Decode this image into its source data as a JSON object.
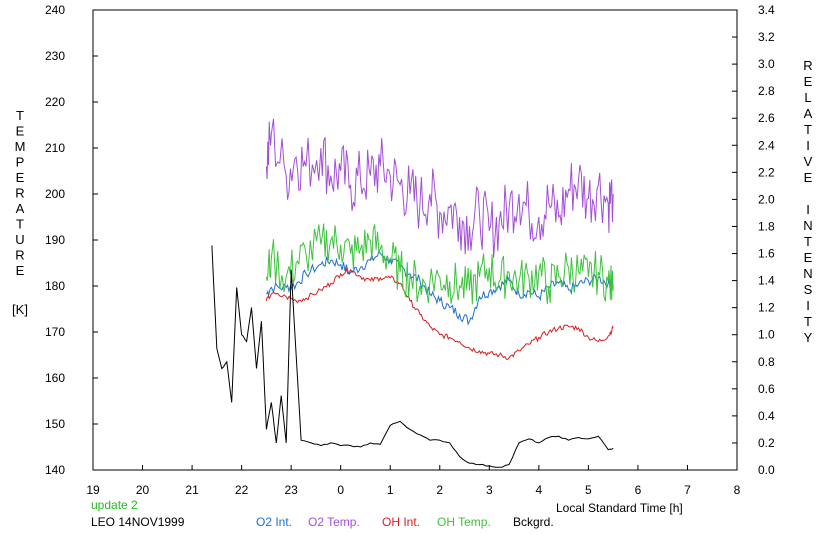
{
  "chart_data": {
    "type": "line",
    "left_axis": {
      "title_letters": [
        "T",
        "E",
        "M",
        "P",
        "E",
        "R",
        "A",
        "T",
        "U",
        "R",
        "E"
      ],
      "unit": "[K]",
      "range": [
        140,
        240
      ],
      "ticks": [
        "140",
        "150",
        "160",
        "170",
        "180",
        "190",
        "200",
        "210",
        "220",
        "230",
        "240"
      ]
    },
    "right_axis": {
      "title_word1": [
        "R",
        "E",
        "L",
        "A",
        "T",
        "I",
        "V",
        "E"
      ],
      "title_word2": [
        "I",
        "N",
        "T",
        "E",
        "N",
        "S",
        "I",
        "T",
        "Y"
      ],
      "range": [
        0.0,
        3.4
      ],
      "ticks": [
        "0.0",
        "0.2",
        "0.4",
        "0.6",
        "0.8",
        "1.0",
        "1.2",
        "1.4",
        "1.6",
        "1.8",
        "2.0",
        "2.2",
        "2.4",
        "2.6",
        "2.8",
        "3.0",
        "3.2",
        "3.4"
      ]
    },
    "x_axis": {
      "label": "Local Standard Time [h]",
      "tick_labels": [
        "19",
        "20",
        "21",
        "22",
        "23",
        "0",
        "1",
        "2",
        "3",
        "4",
        "5",
        "6",
        "7",
        "8"
      ],
      "range_hours_since_19": [
        0,
        13
      ]
    },
    "update_text": "update 2",
    "station_text": "LEO 14NOV1999",
    "colors": {
      "o2_int": "#1f6fd0",
      "o2_temp": "#a24fd6",
      "oh_int": "#d81f1f",
      "oh_temp": "#3cc23c",
      "bckgrd": "#000000",
      "update": "#22bb22"
    },
    "series": [
      {
        "name": "O2 Int.",
        "axis": "right",
        "x": [
          22.5,
          22.6,
          22.9,
          23.1,
          23.3,
          23.6,
          23.8,
          24.0,
          24.2,
          24.4,
          24.6,
          24.8,
          25.0,
          25.2,
          25.4,
          25.6,
          25.8,
          26.0,
          26.2,
          26.4,
          26.6,
          26.8,
          27.0,
          27.2,
          27.4,
          27.6,
          27.8,
          28.0,
          28.2,
          28.4,
          28.6,
          28.8,
          29.0,
          29.2,
          29.4,
          29.5
        ],
        "values": [
          1.3,
          1.35,
          1.35,
          1.37,
          1.45,
          1.52,
          1.55,
          1.52,
          1.46,
          1.5,
          1.55,
          1.6,
          1.55,
          1.5,
          1.45,
          1.4,
          1.3,
          1.25,
          1.2,
          1.15,
          1.1,
          1.28,
          1.32,
          1.36,
          1.4,
          1.3,
          1.32,
          1.28,
          1.35,
          1.38,
          1.33,
          1.37,
          1.4,
          1.42,
          1.38,
          1.35
        ]
      },
      {
        "name": "O2 Temp.",
        "axis": "left",
        "x": [
          22.5,
          22.6,
          22.9,
          23.1,
          23.3,
          23.6,
          23.8,
          24.0,
          24.2,
          24.4,
          24.6,
          24.8,
          25.0,
          25.2,
          25.4,
          25.6,
          25.8,
          26.0,
          26.2,
          26.4,
          26.6,
          26.8,
          27.0,
          27.2,
          27.4,
          27.6,
          27.8,
          28.0,
          28.2,
          28.4,
          28.6,
          28.8,
          29.0,
          29.2,
          29.4,
          29.5
        ],
        "values": [
          206,
          213,
          204,
          208,
          206,
          210,
          204,
          205,
          202,
          203,
          204,
          206,
          204,
          202,
          200,
          198,
          200,
          196,
          197,
          195,
          193,
          196,
          192,
          194,
          197,
          200,
          196,
          195,
          198,
          195,
          201,
          203,
          199,
          202,
          198,
          200
        ]
      },
      {
        "name": "OH Int.",
        "axis": "right",
        "x": [
          22.5,
          22.6,
          22.9,
          23.1,
          23.3,
          23.6,
          23.8,
          24.0,
          24.2,
          24.4,
          24.6,
          24.8,
          25.0,
          25.2,
          25.4,
          25.6,
          25.8,
          26.0,
          26.2,
          26.4,
          26.6,
          26.8,
          27.0,
          27.2,
          27.4,
          27.6,
          27.8,
          28.0,
          28.2,
          28.4,
          28.6,
          28.8,
          29.0,
          29.2,
          29.4,
          29.5
        ],
        "values": [
          1.25,
          1.3,
          1.28,
          1.25,
          1.27,
          1.33,
          1.38,
          1.45,
          1.48,
          1.43,
          1.4,
          1.42,
          1.42,
          1.38,
          1.25,
          1.15,
          1.06,
          1.0,
          0.98,
          0.95,
          0.9,
          0.88,
          0.86,
          0.85,
          0.83,
          0.88,
          0.93,
          0.98,
          1.02,
          1.05,
          1.06,
          1.05,
          0.98,
          0.95,
          0.99,
          1.05
        ]
      },
      {
        "name": "OH Temp.",
        "axis": "left",
        "x": [
          22.5,
          22.6,
          22.9,
          23.1,
          23.3,
          23.6,
          23.8,
          24.0,
          24.2,
          24.4,
          24.6,
          24.8,
          25.0,
          25.2,
          25.4,
          25.6,
          25.8,
          26.0,
          26.2,
          26.4,
          26.6,
          26.8,
          27.0,
          27.2,
          27.4,
          27.6,
          27.8,
          28.0,
          28.2,
          28.4,
          28.6,
          28.8,
          29.0,
          29.2,
          29.4,
          29.5
        ],
        "values": [
          182,
          186,
          182,
          185,
          187,
          189,
          190,
          189,
          187,
          188,
          190,
          188,
          186,
          183,
          182,
          180,
          181,
          182,
          181,
          180,
          179,
          182,
          184,
          181,
          183,
          181,
          182,
          183,
          180,
          182,
          184,
          183,
          182,
          183,
          181,
          179
        ]
      },
      {
        "name": "Bckgrd.",
        "axis": "right",
        "x": [
          21.4,
          21.5,
          21.6,
          21.7,
          21.8,
          21.9,
          22.0,
          22.1,
          22.2,
          22.3,
          22.4,
          22.5,
          22.6,
          22.7,
          22.8,
          22.9,
          23.0,
          23.2,
          23.4,
          23.6,
          23.8,
          24.0,
          24.2,
          24.4,
          24.6,
          24.8,
          25.0,
          25.2,
          25.4,
          25.6,
          25.8,
          26.0,
          26.2,
          26.4,
          26.6,
          26.8,
          27.0,
          27.2,
          27.4,
          27.6,
          27.8,
          28.0,
          28.2,
          28.4,
          28.6,
          28.8,
          29.0,
          29.2,
          29.4,
          29.5
        ],
        "values": [
          1.66,
          0.9,
          0.75,
          0.8,
          0.5,
          1.35,
          1.0,
          0.95,
          1.2,
          0.75,
          1.1,
          0.3,
          0.5,
          0.2,
          0.55,
          0.2,
          1.48,
          0.22,
          0.2,
          0.18,
          0.2,
          0.18,
          0.18,
          0.17,
          0.2,
          0.19,
          0.33,
          0.36,
          0.3,
          0.26,
          0.22,
          0.22,
          0.2,
          0.1,
          0.05,
          0.04,
          0.03,
          0.02,
          0.04,
          0.2,
          0.23,
          0.2,
          0.24,
          0.25,
          0.22,
          0.24,
          0.23,
          0.25,
          0.15,
          0.16
        ]
      }
    ]
  }
}
